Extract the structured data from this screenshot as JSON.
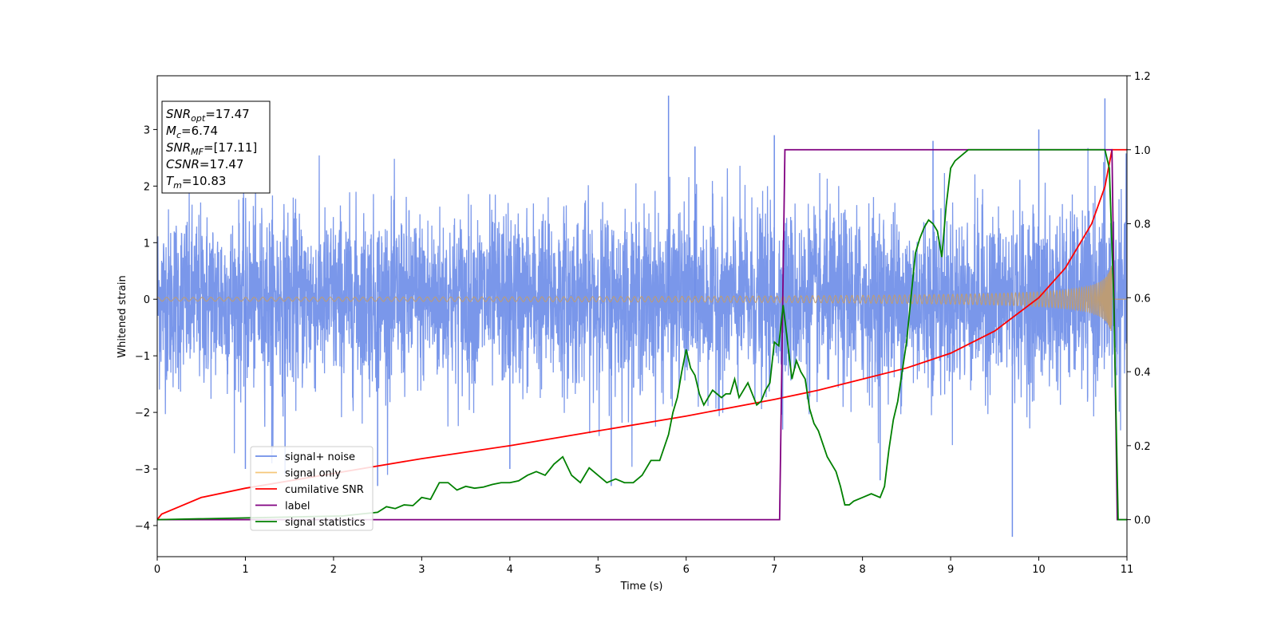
{
  "chart_data": {
    "type": "line",
    "xlabel": "Time (s)",
    "ylabel": "Whitened strain",
    "xlim": [
      0,
      11
    ],
    "ylim": [
      -4.55,
      3.95
    ],
    "y2lim": [
      -0.1,
      1.2
    ],
    "grid": false,
    "legend_position": "lower-left",
    "x_ticks": [
      "0",
      "1",
      "2",
      "3",
      "4",
      "5",
      "6",
      "7",
      "8",
      "9",
      "10",
      "11"
    ],
    "y_ticks": [
      "3",
      "2",
      "1",
      "0",
      "−1",
      "−2",
      "−3",
      "−4"
    ],
    "y2_ticks": [
      "1.2",
      "1.0",
      "0.8",
      "0.6",
      "0.4",
      "0.2",
      "0.0"
    ],
    "series": [
      {
        "name": "signal+ noise",
        "color": "#6f8ee8",
        "axis": "left",
        "kind": "noise",
        "amplitude_std": 0.78,
        "spikes": [
          [
            1.0,
            -3.0
          ],
          [
            1.3,
            -2.9
          ],
          [
            1.45,
            -3.1
          ],
          [
            2.5,
            -3.3
          ],
          [
            4.0,
            -3.0
          ],
          [
            5.15,
            -3.3
          ],
          [
            5.8,
            3.6
          ],
          [
            6.1,
            2.7
          ],
          [
            7.0,
            2.9
          ],
          [
            8.2,
            -3.2
          ],
          [
            8.8,
            2.8
          ],
          [
            9.7,
            -4.2
          ],
          [
            10.0,
            3.0
          ],
          [
            10.75,
            3.55
          ]
        ]
      },
      {
        "name": "signal only",
        "color": "#f5c77a",
        "axis": "left",
        "kind": "chirp",
        "t_merge": 10.83
      },
      {
        "name": "cumilative SNR",
        "color": "#ff0000",
        "axis": "right",
        "x": [
          0,
          0.05,
          0.5,
          1,
          2,
          3,
          4,
          5,
          6,
          7,
          7.5,
          8,
          8.5,
          9,
          9.5,
          10,
          10.3,
          10.6,
          10.75,
          10.83,
          11
        ],
        "y": [
          0,
          0.015,
          0.06,
          0.085,
          0.125,
          0.165,
          0.2,
          0.24,
          0.28,
          0.325,
          0.35,
          0.38,
          0.41,
          0.45,
          0.51,
          0.6,
          0.68,
          0.8,
          0.9,
          1.0,
          1.0
        ]
      },
      {
        "name": "label",
        "color": "#800080",
        "axis": "right",
        "x": [
          0,
          7.06,
          7.12,
          10.83,
          10.89,
          11
        ],
        "y": [
          0,
          0,
          1,
          1,
          0,
          0
        ]
      },
      {
        "name": "signal statistics",
        "color": "#008000",
        "axis": "right",
        "x": [
          0,
          2.1,
          2.3,
          2.5,
          2.6,
          2.7,
          2.8,
          2.9,
          3.0,
          3.1,
          3.2,
          3.3,
          3.4,
          3.5,
          3.6,
          3.7,
          3.8,
          3.9,
          4.0,
          4.1,
          4.2,
          4.3,
          4.4,
          4.5,
          4.6,
          4.7,
          4.8,
          4.9,
          5.0,
          5.1,
          5.2,
          5.3,
          5.4,
          5.5,
          5.6,
          5.7,
          5.8,
          5.85,
          5.9,
          5.95,
          6.0,
          6.05,
          6.1,
          6.15,
          6.2,
          6.3,
          6.4,
          6.45,
          6.5,
          6.55,
          6.6,
          6.7,
          6.8,
          6.85,
          6.9,
          6.95,
          7.0,
          7.05,
          7.1,
          7.15,
          7.2,
          7.25,
          7.3,
          7.35,
          7.4,
          7.45,
          7.5,
          7.6,
          7.7,
          7.75,
          7.8,
          7.85,
          7.9,
          8.0,
          8.1,
          8.2,
          8.25,
          8.3,
          8.35,
          8.4,
          8.45,
          8.5,
          8.55,
          8.6,
          8.65,
          8.7,
          8.75,
          8.8,
          8.85,
          8.9,
          8.95,
          9.0,
          9.05,
          9.1,
          9.15,
          9.2,
          9.3,
          9.5,
          9.7,
          10.0,
          10.3,
          10.6,
          10.75,
          10.8,
          10.85,
          10.9,
          11.0
        ],
        "y": [
          0.0,
          0.01,
          0.015,
          0.02,
          0.035,
          0.03,
          0.04,
          0.038,
          0.06,
          0.055,
          0.1,
          0.1,
          0.08,
          0.09,
          0.085,
          0.088,
          0.095,
          0.1,
          0.1,
          0.105,
          0.12,
          0.13,
          0.12,
          0.15,
          0.17,
          0.12,
          0.1,
          0.14,
          0.12,
          0.1,
          0.11,
          0.1,
          0.1,
          0.12,
          0.16,
          0.16,
          0.23,
          0.29,
          0.33,
          0.4,
          0.46,
          0.41,
          0.39,
          0.34,
          0.31,
          0.35,
          0.33,
          0.34,
          0.34,
          0.38,
          0.33,
          0.37,
          0.31,
          0.32,
          0.35,
          0.37,
          0.48,
          0.47,
          0.58,
          0.48,
          0.38,
          0.43,
          0.4,
          0.38,
          0.3,
          0.26,
          0.24,
          0.17,
          0.13,
          0.09,
          0.04,
          0.04,
          0.05,
          0.06,
          0.07,
          0.06,
          0.09,
          0.19,
          0.27,
          0.32,
          0.4,
          0.48,
          0.6,
          0.72,
          0.76,
          0.79,
          0.81,
          0.8,
          0.78,
          0.71,
          0.85,
          0.95,
          0.97,
          0.98,
          0.99,
          1.0,
          1.0,
          1.0,
          1.0,
          1.0,
          1.0,
          1.0,
          1.0,
          0.95,
          0.6,
          0.0,
          0.0
        ]
      }
    ],
    "annotation": {
      "lines": [
        {
          "base": "SNR",
          "sub": "opt",
          "value": "=17.47"
        },
        {
          "base": "M",
          "sub": "c",
          "value": "=6.74"
        },
        {
          "base": "SNR",
          "sub": "MF",
          "value": "=[17.11]"
        },
        {
          "base": "CSNR",
          "sub": "",
          "value": "=17.47"
        },
        {
          "base": "T",
          "sub": "m",
          "value": "=10.83"
        }
      ]
    }
  }
}
